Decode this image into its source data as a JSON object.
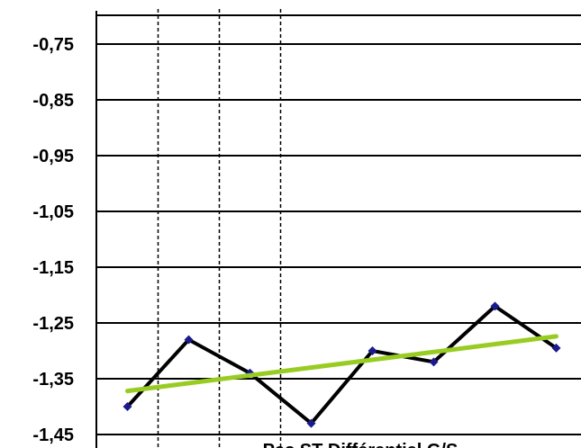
{
  "chart_data": {
    "type": "line",
    "title": "",
    "xlabel": "Pas ST Différentiel G/S",
    "ylabel": "",
    "ylim": [
      -1.45,
      -0.65
    ],
    "yticks": [
      "-0,75",
      "-0,85",
      "-0,95",
      "-1,05",
      "-1,15",
      "-1,25",
      "-1,35",
      "-1,45"
    ],
    "ytick_values": [
      -0.75,
      -0.85,
      -0.95,
      -1.05,
      -1.15,
      -1.25,
      -1.35,
      -1.45
    ],
    "grid": "horizontal",
    "x": [
      1,
      2,
      3,
      4,
      5,
      6,
      7,
      8
    ],
    "series": [
      {
        "values": [
          -1.4,
          -1.28,
          -1.34,
          -1.43,
          -1.3,
          -1.32,
          -1.22,
          -1.295
        ],
        "color": "#000000",
        "marker_color": "#1a1a8c"
      },
      {
        "values": [
          -1.372,
          -1.358,
          -1.344,
          -1.33,
          -1.316,
          -1.302,
          -1.288,
          -1.274
        ],
        "color": "#99cc22",
        "kind": "trendline"
      }
    ],
    "vertical_dashed_lines_after_x": [
      1.5,
      2.5,
      3.5
    ]
  }
}
